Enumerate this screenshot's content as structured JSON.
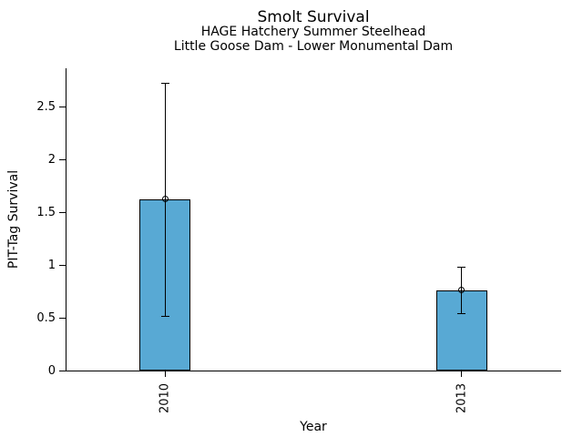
{
  "chart_data": {
    "type": "bar",
    "title": "Smolt Survival",
    "subtitle1": "HAGE Hatchery Summer Steelhead",
    "subtitle2": "Little Goose Dam - Lower Monumental Dam",
    "xlabel": "Year",
    "ylabel": "PIT-Tag Survival",
    "categories": [
      "2010",
      "2013"
    ],
    "x_positions": [
      2010,
      2013
    ],
    "values": [
      1.62,
      0.76
    ],
    "error_low": [
      0.52,
      0.54
    ],
    "error_high": [
      2.71,
      0.97
    ],
    "xlim": [
      2009,
      2014
    ],
    "ylim": [
      0,
      2.86
    ],
    "yticks": [
      0,
      0.5,
      1,
      1.5,
      2,
      2.5
    ],
    "ytick_labels": [
      "0",
      "0.5",
      "1",
      "1.5",
      "2",
      "2.5"
    ],
    "bar_color": "#58a9d4",
    "edge_color": "#000000",
    "marker": "open-circle",
    "grid": false,
    "legend": null
  }
}
